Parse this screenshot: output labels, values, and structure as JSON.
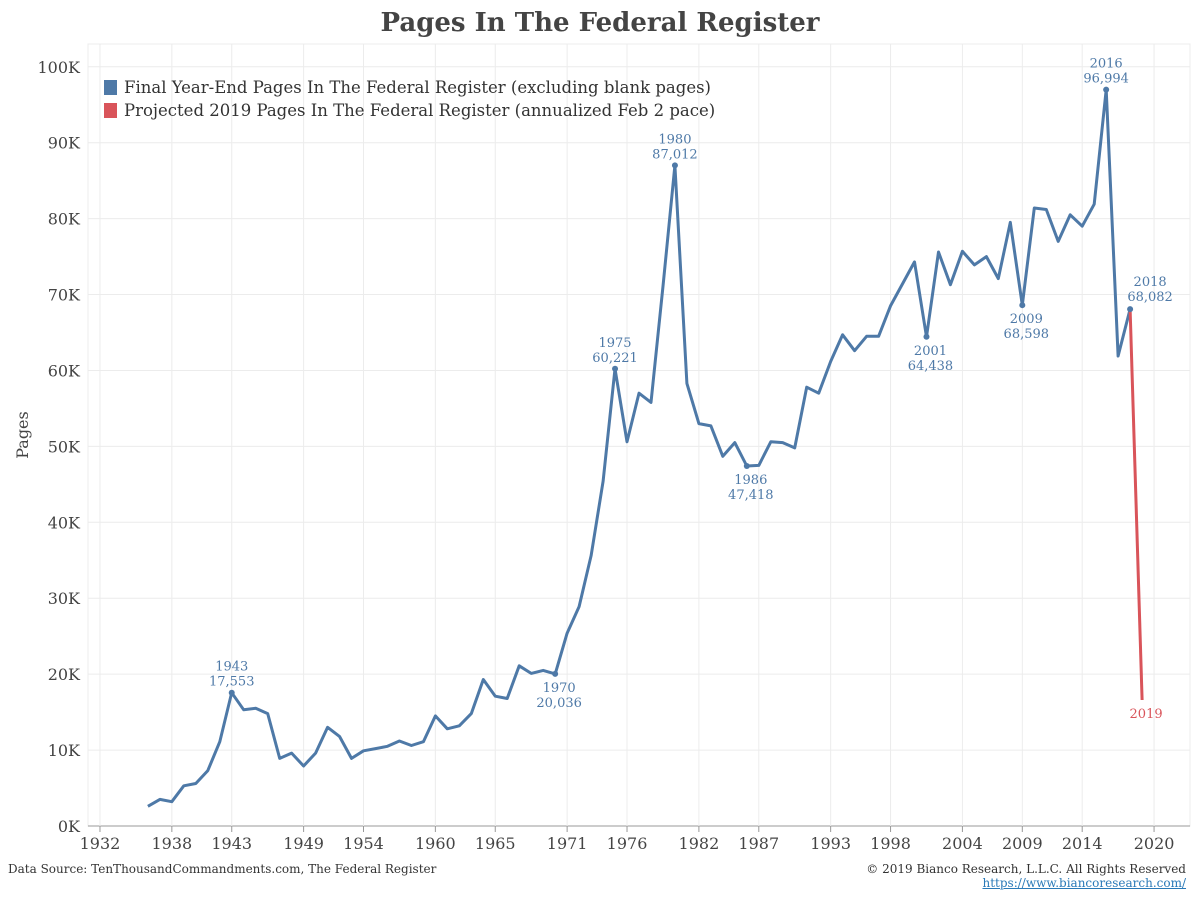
{
  "title": "Pages In The Federal Register",
  "source": "Data Source: TenThousandCommandments.com, The Federal Register",
  "copyright": "© 2019 Bianco Research, L.L.C. All Rights Reserved",
  "url": "https://www.biancoresearch.com/",
  "colors": {
    "main": "#4e79a7",
    "projected": "#d9545a",
    "grid": "#ececec",
    "axis": "#444444"
  },
  "chart_data": {
    "type": "line",
    "title": "Pages In The Federal Register",
    "ylabel": "Pages",
    "xlabel": "",
    "xlim": [
      1931,
      2023
    ],
    "ylim": [
      0,
      103000
    ],
    "grid": true,
    "legend_position": "top-left",
    "x_ticks": [
      1932,
      1938,
      1943,
      1949,
      1954,
      1960,
      1965,
      1971,
      1976,
      1982,
      1987,
      1993,
      1998,
      2004,
      2009,
      2014,
      2020
    ],
    "y_ticks": [
      {
        "value": 0,
        "label": "0K"
      },
      {
        "value": 10000,
        "label": "10K"
      },
      {
        "value": 20000,
        "label": "20K"
      },
      {
        "value": 30000,
        "label": "30K"
      },
      {
        "value": 40000,
        "label": "40K"
      },
      {
        "value": 50000,
        "label": "50K"
      },
      {
        "value": 60000,
        "label": "60K"
      },
      {
        "value": 70000,
        "label": "70K"
      },
      {
        "value": 80000,
        "label": "80K"
      },
      {
        "value": 90000,
        "label": "90K"
      },
      {
        "value": 100000,
        "label": "100K"
      }
    ],
    "series": [
      {
        "name": "Final Year-End Pages In The Federal Register (excluding blank pages)",
        "color": "#4e79a7",
        "x": [
          1936,
          1937,
          1938,
          1939,
          1940,
          1941,
          1942,
          1943,
          1944,
          1945,
          1946,
          1947,
          1948,
          1949,
          1950,
          1951,
          1952,
          1953,
          1954,
          1955,
          1956,
          1957,
          1958,
          1959,
          1960,
          1961,
          1962,
          1963,
          1964,
          1965,
          1966,
          1967,
          1968,
          1969,
          1970,
          1971,
          1972,
          1973,
          1974,
          1975,
          1976,
          1977,
          1978,
          1979,
          1980,
          1981,
          1982,
          1983,
          1984,
          1985,
          1986,
          1987,
          1988,
          1989,
          1990,
          1991,
          1992,
          1993,
          1994,
          1995,
          1996,
          1997,
          1998,
          1999,
          2000,
          2001,
          2002,
          2003,
          2004,
          2005,
          2006,
          2007,
          2008,
          2009,
          2010,
          2011,
          2012,
          2013,
          2014,
          2015,
          2016,
          2017,
          2018
        ],
        "y": [
          2600,
          3500,
          3200,
          5300,
          5600,
          7300,
          11100,
          17553,
          15300,
          15500,
          14800,
          8900,
          9600,
          7900,
          9600,
          13000,
          11800,
          8900,
          9900,
          10200,
          10500,
          11200,
          10600,
          11100,
          14500,
          12800,
          13200,
          14800,
          19300,
          17100,
          16800,
          21100,
          20100,
          20500,
          20036,
          25400,
          28900,
          35600,
          45400,
          60221,
          50600,
          57000,
          55800,
          71100,
          87012,
          58300,
          53000,
          52700,
          48700,
          50500,
          47418,
          47500,
          50600,
          50500,
          49800,
          57800,
          57000,
          61200,
          64700,
          62600,
          64500,
          64500,
          68500,
          71400,
          74300,
          64438,
          75600,
          71300,
          75700,
          73900,
          75000,
          72100,
          79500,
          68598,
          81400,
          81200,
          77000,
          80500,
          79000,
          81900,
          96994,
          61900,
          68082
        ]
      },
      {
        "name": "Projected 2019 Pages In The Federal Register (annualized Feb 2 pace)",
        "color": "#d9545a",
        "x": [
          2018,
          2019
        ],
        "y": [
          68082,
          16600
        ]
      }
    ],
    "annotations": [
      {
        "x": 1943,
        "y": 17553,
        "year": "1943",
        "value": "17,553",
        "position": "above",
        "color": "#4e79a7"
      },
      {
        "x": 1970,
        "y": 20036,
        "year": "1970",
        "value": "20,036",
        "position": "below",
        "color": "#4e79a7"
      },
      {
        "x": 1975,
        "y": 60221,
        "year": "1975",
        "value": "60,221",
        "position": "above",
        "color": "#4e79a7"
      },
      {
        "x": 1980,
        "y": 87012,
        "year": "1980",
        "value": "87,012",
        "position": "above",
        "color": "#4e79a7"
      },
      {
        "x": 1986,
        "y": 47418,
        "year": "1986",
        "value": "47,418",
        "position": "below",
        "color": "#4e79a7"
      },
      {
        "x": 2001,
        "y": 64438,
        "year": "2001",
        "value": "64,438",
        "position": "below",
        "color": "#4e79a7"
      },
      {
        "x": 2009,
        "y": 68598,
        "year": "2009",
        "value": "68,598",
        "position": "below",
        "color": "#4e79a7"
      },
      {
        "x": 2016,
        "y": 96994,
        "year": "2016",
        "value": "96,994",
        "position": "above",
        "color": "#4e79a7"
      },
      {
        "x": 2018,
        "y": 68082,
        "year": "2018",
        "value": "68,082",
        "position": "right",
        "color": "#4e79a7"
      },
      {
        "x": 2019,
        "y": 16600,
        "year": "2019",
        "value": "",
        "position": "below",
        "color": "#d9545a"
      }
    ]
  }
}
